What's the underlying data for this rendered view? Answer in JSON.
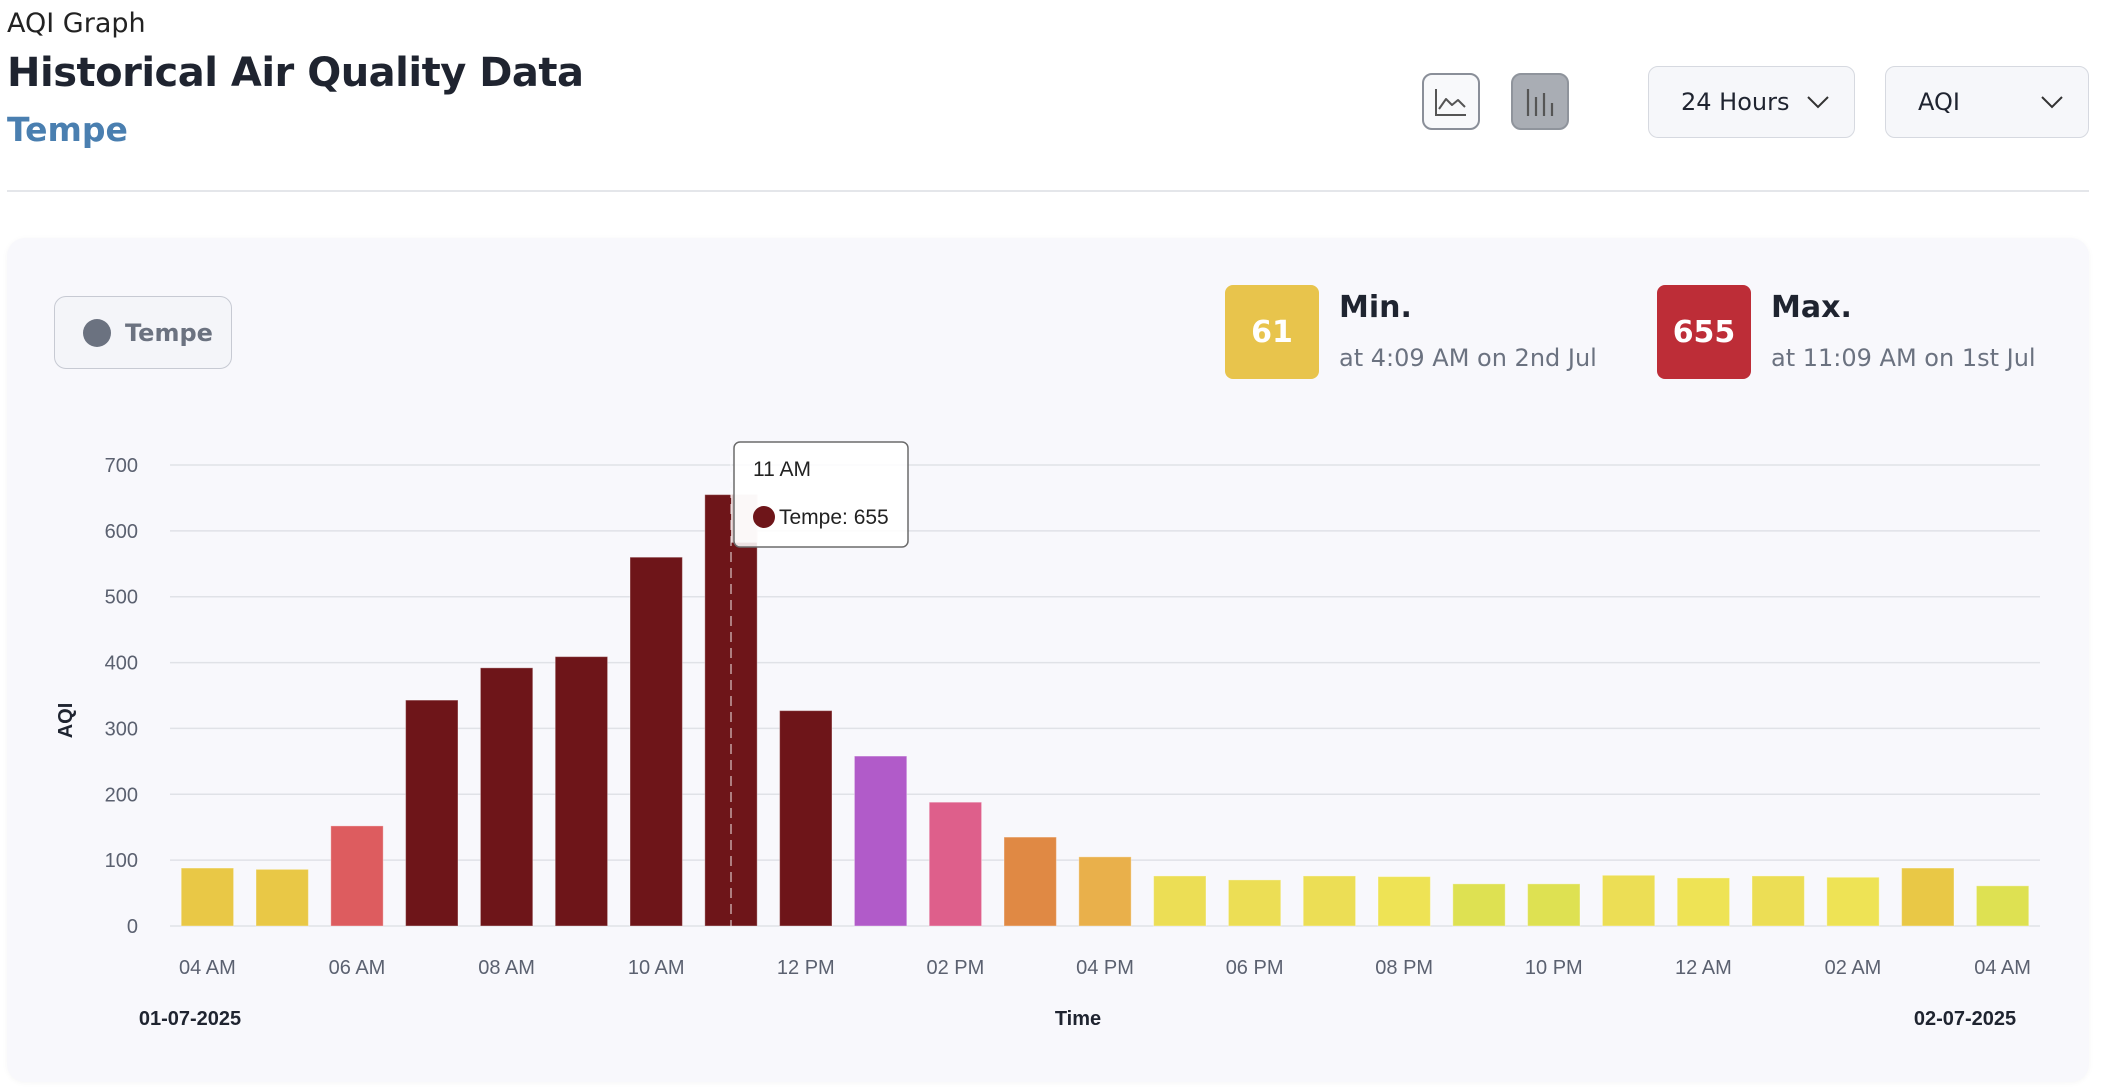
{
  "header": {
    "kicker": "AQI Graph",
    "title": "Historical Air Quality Data",
    "location": "Tempe"
  },
  "controls": {
    "chart_types": [
      {
        "name": "line-chart-icon",
        "active": false
      },
      {
        "name": "bar-chart-icon",
        "active": true
      }
    ],
    "range_select": "24 Hours",
    "metric_select": "AQI"
  },
  "legend": {
    "label": "Tempe",
    "color": "#6b7280"
  },
  "stats": {
    "min": {
      "value": "61",
      "title": "Min.",
      "subtitle": "at 4:09 AM on 2nd Jul",
      "color": "#e8c44c"
    },
    "max": {
      "value": "655",
      "title": "Max.",
      "subtitle": "at 11:09 AM on 1st Jul",
      "color": "#bd2d37"
    }
  },
  "tooltip": {
    "time": "11 AM",
    "label": "Tempe: 655",
    "color": "#6e1519"
  },
  "chart_data": {
    "type": "bar",
    "ylabel": "AQI",
    "xlabel": "Time",
    "ylim": [
      0,
      700
    ],
    "yticks": [
      0,
      100,
      200,
      300,
      400,
      500,
      600,
      700
    ],
    "grid": true,
    "x_start_label": "01-07-2025",
    "x_end_label": "02-07-2025",
    "categories": [
      "04 AM",
      "05 AM",
      "06 AM",
      "07 AM",
      "08 AM",
      "09 AM",
      "10 AM",
      "11 AM",
      "12 PM",
      "01 PM",
      "02 PM",
      "03 PM",
      "04 PM",
      "05 PM",
      "06 PM",
      "07 PM",
      "08 PM",
      "09 PM",
      "10 PM",
      "11 PM",
      "12 AM",
      "01 AM",
      "02 AM",
      "03 AM",
      "04 AM"
    ],
    "tick_labels": [
      "04 AM",
      "06 AM",
      "08 AM",
      "10 AM",
      "12 PM",
      "02 PM",
      "04 PM",
      "06 PM",
      "08 PM",
      "10 PM",
      "12 AM",
      "02 AM",
      "04 AM"
    ],
    "series": [
      {
        "name": "Tempe",
        "values": [
          88,
          86,
          152,
          343,
          392,
          409,
          560,
          655,
          327,
          258,
          188,
          135,
          105,
          76,
          70,
          76,
          75,
          64,
          64,
          77,
          73,
          76,
          74,
          88,
          61
        ],
        "colors": [
          "#e9c846",
          "#e9c846",
          "#dd5c5f",
          "#6e1519",
          "#6e1519",
          "#6e1519",
          "#6e1519",
          "#6e1519",
          "#6e1519",
          "#b15bc9",
          "#de5f8b",
          "#e08944",
          "#e9b04b",
          "#ecde55",
          "#ecde55",
          "#ecde55",
          "#eee355",
          "#dee152",
          "#dee152",
          "#ecde55",
          "#eee355",
          "#ecde55",
          "#eee355",
          "#e9c846",
          "#dee152"
        ]
      }
    ]
  }
}
